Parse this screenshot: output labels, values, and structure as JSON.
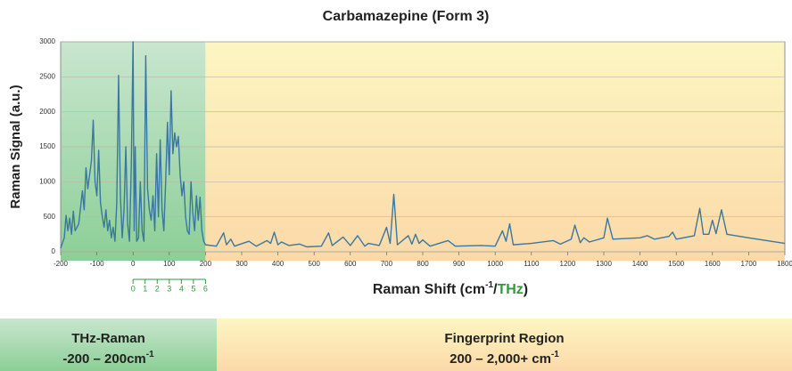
{
  "chart_data": {
    "type": "line",
    "title": "Carbamazepine (Form 3)",
    "y_label": "Raman Signal (a.u.)",
    "x_label_parts": [
      "Raman Shift (cm",
      "-1",
      "/",
      "THz",
      ")"
    ],
    "color": "#3b77a0",
    "grid": true,
    "xlim": [
      -200,
      1800
    ],
    "xticks": [
      -200,
      -100,
      0,
      100,
      200,
      300,
      400,
      500,
      600,
      700,
      800,
      900,
      1000,
      1100,
      1200,
      1300,
      1400,
      1500,
      1600,
      1700,
      1800
    ],
    "ylim": [
      0,
      3000
    ],
    "yticks": [
      0,
      500,
      1000,
      1500,
      2000,
      2500,
      3000
    ],
    "x2lim": [
      -6,
      54
    ],
    "x2ticks": [
      0,
      1,
      2,
      3,
      4,
      5,
      6
    ],
    "x2_color": "#2e9a3c",
    "regions": [
      {
        "label": "THz-Raman",
        "range": "-200 – 200cm",
        "unit_sup": "-1",
        "start": -200,
        "end": 200,
        "colors": [
          "#c9e6cf",
          "#8ccf96"
        ]
      },
      {
        "label": "Fingerprint Region",
        "range": "200 – 2,000+ cm",
        "unit_sup": "-1",
        "start": 200,
        "end": 1800,
        "colors": [
          "#fdf6c2",
          "#fbd9a8"
        ]
      }
    ],
    "x": [
      -200,
      -190,
      -185,
      -180,
      -175,
      -170,
      -165,
      -160,
      -150,
      -140,
      -135,
      -130,
      -125,
      -115,
      -110,
      -105,
      -100,
      -95,
      -90,
      -85,
      -80,
      -75,
      -70,
      -65,
      -60,
      -55,
      -50,
      -45,
      -40,
      -35,
      -30,
      -25,
      -20,
      -15,
      -10,
      -5,
      0,
      3,
      6,
      10,
      15,
      20,
      25,
      30,
      35,
      40,
      45,
      50,
      55,
      60,
      65,
      70,
      75,
      80,
      85,
      90,
      95,
      100,
      105,
      110,
      115,
      120,
      125,
      130,
      135,
      140,
      145,
      150,
      155,
      160,
      165,
      170,
      175,
      180,
      185,
      190,
      195,
      200,
      230,
      250,
      258,
      270,
      280,
      320,
      340,
      370,
      380,
      390,
      400,
      410,
      430,
      460,
      480,
      520,
      540,
      550,
      580,
      600,
      620,
      640,
      650,
      680,
      700,
      710,
      720,
      730,
      760,
      770,
      780,
      790,
      800,
      820,
      870,
      890,
      960,
      1000,
      1020,
      1030,
      1040,
      1050,
      1100,
      1160,
      1180,
      1210,
      1220,
      1235,
      1245,
      1260,
      1300,
      1310,
      1325,
      1400,
      1420,
      1440,
      1480,
      1490,
      1500,
      1550,
      1565,
      1575,
      1590,
      1600,
      1610,
      1625,
      1640,
      1700,
      1800
    ],
    "values": [
      50,
      200,
      520,
      300,
      480,
      250,
      580,
      300,
      400,
      870,
      600,
      1200,
      900,
      1300,
      1880,
      1000,
      800,
      1450,
      700,
      500,
      350,
      600,
      300,
      450,
      200,
      350,
      150,
      700,
      2520,
      800,
      200,
      600,
      1500,
      400,
      150,
      1200,
      3000,
      300,
      1500,
      150,
      200,
      1000,
      300,
      150,
      2800,
      900,
      600,
      450,
      800,
      300,
      1400,
      500,
      1600,
      600,
      300,
      1000,
      1850,
      1100,
      2300,
      1400,
      1700,
      1500,
      1650,
      1100,
      800,
      1000,
      500,
      300,
      250,
      1000,
      550,
      300,
      800,
      450,
      780,
      300,
      150,
      100,
      80,
      270,
      100,
      180,
      80,
      150,
      80,
      160,
      120,
      280,
      100,
      140,
      90,
      110,
      70,
      80,
      270,
      90,
      210,
      90,
      230,
      80,
      120,
      90,
      350,
      120,
      820,
      100,
      230,
      110,
      250,
      120,
      170,
      80,
      160,
      80,
      90,
      80,
      300,
      150,
      400,
      100,
      120,
      160,
      110,
      180,
      380,
      130,
      200,
      140,
      200,
      480,
      180,
      200,
      230,
      180,
      220,
      280,
      180,
      230,
      620,
      250,
      250,
      450,
      260,
      600,
      250,
      200,
      120
    ]
  }
}
